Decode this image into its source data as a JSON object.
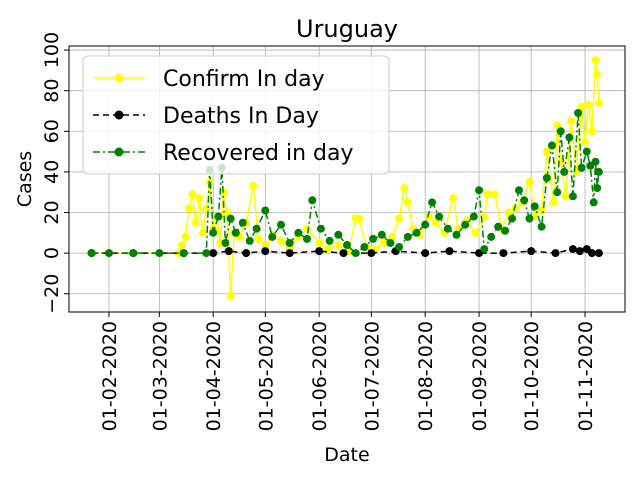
{
  "chart_data": {
    "type": "line",
    "title": "Uruguay",
    "xlabel": "Date",
    "ylabel": "Cases",
    "x_ticks": [
      "01-02-2020",
      "01-03-2020",
      "01-04-2020",
      "01-05-2020",
      "01-06-2020",
      "01-07-2020",
      "01-08-2020",
      "01-09-2020",
      "01-10-2020",
      "01-11-2020"
    ],
    "y_ticks": [
      "−20",
      "0",
      "20",
      "40",
      "60",
      "80",
      "100"
    ],
    "xlim": [
      "2020-01-09",
      "2020-11-24"
    ],
    "ylim": [
      -29,
      102
    ],
    "grid": true,
    "legend_position": "top-left",
    "series": [
      {
        "name": "Confirm In day",
        "color": "#ffff00",
        "line_style": "solid",
        "marker": "circle",
        "points": [
          [
            "2020-01-22",
            0
          ],
          [
            "2020-02-01",
            0
          ],
          [
            "2020-02-15",
            0
          ],
          [
            "2020-03-01",
            0
          ],
          [
            "2020-03-12",
            0
          ],
          [
            "2020-03-14",
            4
          ],
          [
            "2020-03-16",
            8
          ],
          [
            "2020-03-18",
            22
          ],
          [
            "2020-03-20",
            29
          ],
          [
            "2020-03-22",
            15
          ],
          [
            "2020-03-24",
            27
          ],
          [
            "2020-03-26",
            10
          ],
          [
            "2020-03-28",
            22
          ],
          [
            "2020-03-30",
            35
          ],
          [
            "2020-04-01",
            12
          ],
          [
            "2020-04-03",
            18
          ],
          [
            "2020-04-05",
            5
          ],
          [
            "2020-04-07",
            30
          ],
          [
            "2020-04-09",
            20
          ],
          [
            "2020-04-11",
            -21
          ],
          [
            "2020-04-13",
            10
          ],
          [
            "2020-04-16",
            8
          ],
          [
            "2020-04-20",
            15
          ],
          [
            "2020-04-24",
            33
          ],
          [
            "2020-04-27",
            7
          ],
          [
            "2020-05-01",
            4
          ],
          [
            "2020-05-05",
            9
          ],
          [
            "2020-05-10",
            6
          ],
          [
            "2020-05-15",
            3
          ],
          [
            "2020-05-20",
            8
          ],
          [
            "2020-05-25",
            12
          ],
          [
            "2020-06-01",
            5
          ],
          [
            "2020-06-06",
            2
          ],
          [
            "2020-06-12",
            4
          ],
          [
            "2020-06-18",
            1
          ],
          [
            "2020-06-22",
            17
          ],
          [
            "2020-06-24",
            17
          ],
          [
            "2020-06-28",
            3
          ],
          [
            "2020-07-03",
            2
          ],
          [
            "2020-07-08",
            5
          ],
          [
            "2020-07-13",
            8
          ],
          [
            "2020-07-17",
            17
          ],
          [
            "2020-07-20",
            32
          ],
          [
            "2020-07-22",
            25
          ],
          [
            "2020-07-25",
            12
          ],
          [
            "2020-07-29",
            9
          ],
          [
            "2020-08-03",
            18
          ],
          [
            "2020-08-07",
            15
          ],
          [
            "2020-08-12",
            10
          ],
          [
            "2020-08-17",
            27
          ],
          [
            "2020-08-20",
            12
          ],
          [
            "2020-08-25",
            16
          ],
          [
            "2020-08-30",
            10
          ],
          [
            "2020-09-04",
            18
          ],
          [
            "2020-09-06",
            29
          ],
          [
            "2020-09-10",
            29
          ],
          [
            "2020-09-14",
            12
          ],
          [
            "2020-09-18",
            20
          ],
          [
            "2020-09-22",
            22
          ],
          [
            "2020-09-26",
            25
          ],
          [
            "2020-09-30",
            35
          ],
          [
            "2020-10-03",
            18
          ],
          [
            "2020-10-07",
            21
          ],
          [
            "2020-10-10",
            50
          ],
          [
            "2020-10-14",
            25
          ],
          [
            "2020-10-16",
            63
          ],
          [
            "2020-10-18",
            45
          ],
          [
            "2020-10-21",
            28
          ],
          [
            "2020-10-24",
            65
          ],
          [
            "2020-10-27",
            40
          ],
          [
            "2020-10-30",
            72
          ],
          [
            "2020-11-01",
            55
          ],
          [
            "2020-11-03",
            73
          ],
          [
            "2020-11-05",
            60
          ],
          [
            "2020-11-07",
            95
          ],
          [
            "2020-11-08",
            88
          ],
          [
            "2020-11-09",
            74
          ]
        ]
      },
      {
        "name": "Deaths In Day",
        "color": "#000000",
        "line_style": "dashed",
        "marker": "circle",
        "points": [
          [
            "2020-01-22",
            0
          ],
          [
            "2020-02-15",
            0
          ],
          [
            "2020-03-15",
            0
          ],
          [
            "2020-04-01",
            0
          ],
          [
            "2020-04-10",
            1
          ],
          [
            "2020-04-20",
            0
          ],
          [
            "2020-05-01",
            1
          ],
          [
            "2020-05-15",
            0
          ],
          [
            "2020-06-01",
            1
          ],
          [
            "2020-06-15",
            0
          ],
          [
            "2020-07-01",
            0
          ],
          [
            "2020-07-15",
            1
          ],
          [
            "2020-08-01",
            0
          ],
          [
            "2020-08-15",
            1
          ],
          [
            "2020-09-01",
            0
          ],
          [
            "2020-09-15",
            0
          ],
          [
            "2020-10-01",
            1
          ],
          [
            "2020-10-15",
            0
          ],
          [
            "2020-10-25",
            2
          ],
          [
            "2020-10-29",
            1
          ],
          [
            "2020-11-02",
            2
          ],
          [
            "2020-11-05",
            0
          ],
          [
            "2020-11-09",
            0
          ]
        ]
      },
      {
        "name": "Recovered in day",
        "color": "#008000",
        "line_style": "dashdot",
        "marker": "circle",
        "points": [
          [
            "2020-01-22",
            0
          ],
          [
            "2020-02-01",
            0
          ],
          [
            "2020-02-15",
            0
          ],
          [
            "2020-03-01",
            0
          ],
          [
            "2020-03-15",
            0
          ],
          [
            "2020-03-28",
            0
          ],
          [
            "2020-03-30",
            41
          ],
          [
            "2020-04-01",
            10
          ],
          [
            "2020-04-04",
            18
          ],
          [
            "2020-04-06",
            42
          ],
          [
            "2020-04-08",
            5
          ],
          [
            "2020-04-11",
            17
          ],
          [
            "2020-04-14",
            10
          ],
          [
            "2020-04-18",
            15
          ],
          [
            "2020-04-22",
            6
          ],
          [
            "2020-04-26",
            12
          ],
          [
            "2020-05-01",
            21
          ],
          [
            "2020-05-05",
            8
          ],
          [
            "2020-05-10",
            14
          ],
          [
            "2020-05-15",
            5
          ],
          [
            "2020-05-20",
            10
          ],
          [
            "2020-05-25",
            7
          ],
          [
            "2020-05-28",
            26
          ],
          [
            "2020-06-02",
            12
          ],
          [
            "2020-06-07",
            6
          ],
          [
            "2020-06-12",
            9
          ],
          [
            "2020-06-17",
            4
          ],
          [
            "2020-06-22",
            0
          ],
          [
            "2020-06-27",
            3
          ],
          [
            "2020-07-02",
            7
          ],
          [
            "2020-07-07",
            9
          ],
          [
            "2020-07-12",
            5
          ],
          [
            "2020-07-17",
            3
          ],
          [
            "2020-07-22",
            8
          ],
          [
            "2020-07-27",
            10
          ],
          [
            "2020-08-01",
            14
          ],
          [
            "2020-08-05",
            25
          ],
          [
            "2020-08-09",
            18
          ],
          [
            "2020-08-14",
            12
          ],
          [
            "2020-08-19",
            9
          ],
          [
            "2020-08-24",
            14
          ],
          [
            "2020-08-29",
            18
          ],
          [
            "2020-09-01",
            31
          ],
          [
            "2020-09-04",
            2
          ],
          [
            "2020-09-08",
            8
          ],
          [
            "2020-09-12",
            13
          ],
          [
            "2020-09-16",
            11
          ],
          [
            "2020-09-20",
            17
          ],
          [
            "2020-09-24",
            31
          ],
          [
            "2020-09-27",
            26
          ],
          [
            "2020-09-30",
            17
          ],
          [
            "2020-10-03",
            23
          ],
          [
            "2020-10-07",
            13
          ],
          [
            "2020-10-10",
            37
          ],
          [
            "2020-10-13",
            53
          ],
          [
            "2020-10-16",
            30
          ],
          [
            "2020-10-18",
            60
          ],
          [
            "2020-10-20",
            40
          ],
          [
            "2020-10-23",
            57
          ],
          [
            "2020-10-25",
            28
          ],
          [
            "2020-10-28",
            69
          ],
          [
            "2020-10-30",
            42
          ],
          [
            "2020-11-02",
            50
          ],
          [
            "2020-11-04",
            43
          ],
          [
            "2020-11-06",
            25
          ],
          [
            "2020-11-07",
            45
          ],
          [
            "2020-11-08",
            32
          ],
          [
            "2020-11-09",
            40
          ]
        ]
      }
    ]
  }
}
